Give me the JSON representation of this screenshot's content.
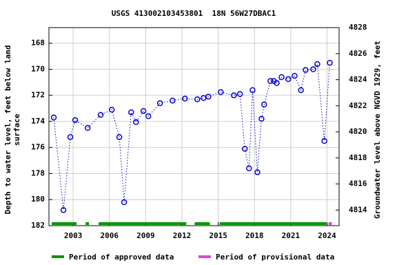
{
  "chart_data": {
    "type": "line",
    "title": "USGS 413002103453801  18N 56W27DBAC1",
    "ylabel_lines": [
      "Depth to water level, feet below land",
      "surface"
    ],
    "y2label": "Groundwater level above NGVD 1929, feet",
    "xlim": [
      2001,
      2025
    ],
    "xticks": [
      2003,
      2006,
      2009,
      2012,
      2015,
      2018,
      2021,
      2024
    ],
    "ylim": [
      182,
      166.8
    ],
    "yticks": [
      168,
      170,
      172,
      174,
      176,
      178,
      180,
      182
    ],
    "y2lim": [
      4812.8,
      4828
    ],
    "y2ticks": [
      4814,
      4816,
      4818,
      4820,
      4822,
      4824,
      4826,
      4828
    ],
    "grid": true,
    "series": [
      {
        "name": "Depth to water level",
        "color": "#0000cc",
        "x": [
          2001.4,
          2002.2,
          2002.77,
          2003.17,
          2004.2,
          2005.28,
          2006.2,
          2006.82,
          2007.22,
          2007.8,
          2008.2,
          2008.82,
          2009.22,
          2010.19,
          2011.22,
          2012.25,
          2013.27,
          2013.79,
          2014.19,
          2015.21,
          2016.3,
          2016.8,
          2017.2,
          2017.55,
          2017.84,
          2018.24,
          2018.58,
          2018.8,
          2019.32,
          2019.6,
          2019.84,
          2020.24,
          2020.8,
          2021.32,
          2021.84,
          2022.23,
          2022.86,
          2023.2,
          2023.78,
          2024.23
        ],
        "values": [
          173.7,
          180.8,
          175.2,
          173.9,
          174.5,
          173.5,
          173.1,
          175.2,
          180.2,
          173.3,
          174.05,
          173.2,
          173.6,
          172.6,
          172.4,
          172.25,
          172.3,
          172.2,
          172.1,
          171.75,
          172.0,
          171.9,
          176.1,
          177.6,
          171.6,
          177.9,
          173.8,
          172.7,
          170.9,
          170.9,
          171.05,
          170.6,
          170.75,
          170.5,
          171.6,
          170.05,
          170.0,
          169.6,
          175.5,
          169.5
        ]
      }
    ],
    "periods": [
      {
        "name": "Period of approved data",
        "color": "#009900",
        "ranges": [
          [
            2001.23,
            2003.29
          ],
          [
            2004.03,
            2004.31
          ],
          [
            2005.11,
            2012.36
          ],
          [
            2013.05,
            2014.31
          ],
          [
            2015.11,
            2023.95
          ]
        ]
      },
      {
        "name": "Period of provisional data",
        "color": "#dd44dd",
        "ranges": [
          [
            2024.12,
            2024.4
          ]
        ]
      }
    ]
  }
}
